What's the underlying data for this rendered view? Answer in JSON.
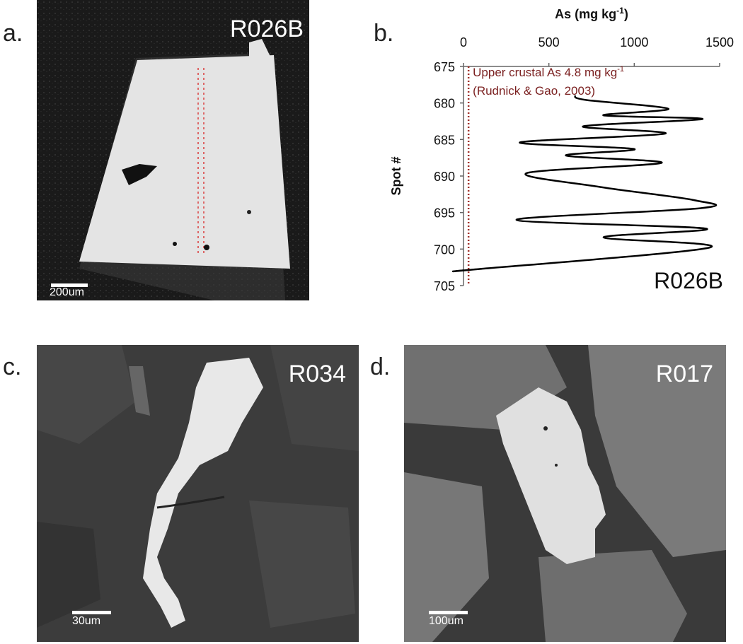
{
  "panels": {
    "a": {
      "letter": "a.",
      "sample": "R026B",
      "scale_label": "200um"
    },
    "b": {
      "letter": "b."
    },
    "c": {
      "letter": "c.",
      "sample": "R034",
      "scale_label": "30um"
    },
    "d": {
      "letter": "d.",
      "sample": "R017",
      "scale_label": "100um"
    }
  },
  "chart_data": {
    "type": "line",
    "xlabel": "As (mg kg",
    "xlabel_sup": "-1",
    "xlabel_close": ")",
    "ylabel": "Spot #",
    "xlim": [
      0,
      1500
    ],
    "x_axis_position": "top",
    "x_ticks": [
      0,
      500,
      1000,
      1500
    ],
    "ylim": [
      675,
      705
    ],
    "y_inverted": true,
    "y_ticks": [
      675,
      680,
      685,
      690,
      695,
      700,
      705
    ],
    "sample_label": "R026B",
    "reference_line": {
      "value": 4.8,
      "label_line1_prefix": "Upper crustal As 4.8 mg kg",
      "label_line1_sup": "-1",
      "label_line2": "(Rudnick & Gao, 2003)",
      "color": "#a0302a"
    },
    "series": [
      {
        "color": "#000000",
        "points": [
          [
            650,
            679
          ],
          [
            720,
            679.6
          ],
          [
            1200,
            680.8
          ],
          [
            820,
            681.7
          ],
          [
            1400,
            682.2
          ],
          [
            700,
            683.2
          ],
          [
            1180,
            684.2
          ],
          [
            330,
            685.4
          ],
          [
            1000,
            686.3
          ],
          [
            600,
            687.2
          ],
          [
            1160,
            688.2
          ],
          [
            370,
            689.6
          ],
          [
            800,
            691.5
          ],
          [
            1350,
            693.3
          ],
          [
            1390,
            694.4
          ],
          [
            310,
            696
          ],
          [
            1420,
            697.2
          ],
          [
            820,
            698.4
          ],
          [
            1440,
            699.8
          ],
          [
            60,
            702.8
          ],
          [
            0,
            702.9
          ]
        ]
      }
    ]
  },
  "colors": {
    "background": "#ffffff",
    "sem_dark": "#151515",
    "mineral": "#e6e6e6",
    "reference": "#a0302a"
  }
}
